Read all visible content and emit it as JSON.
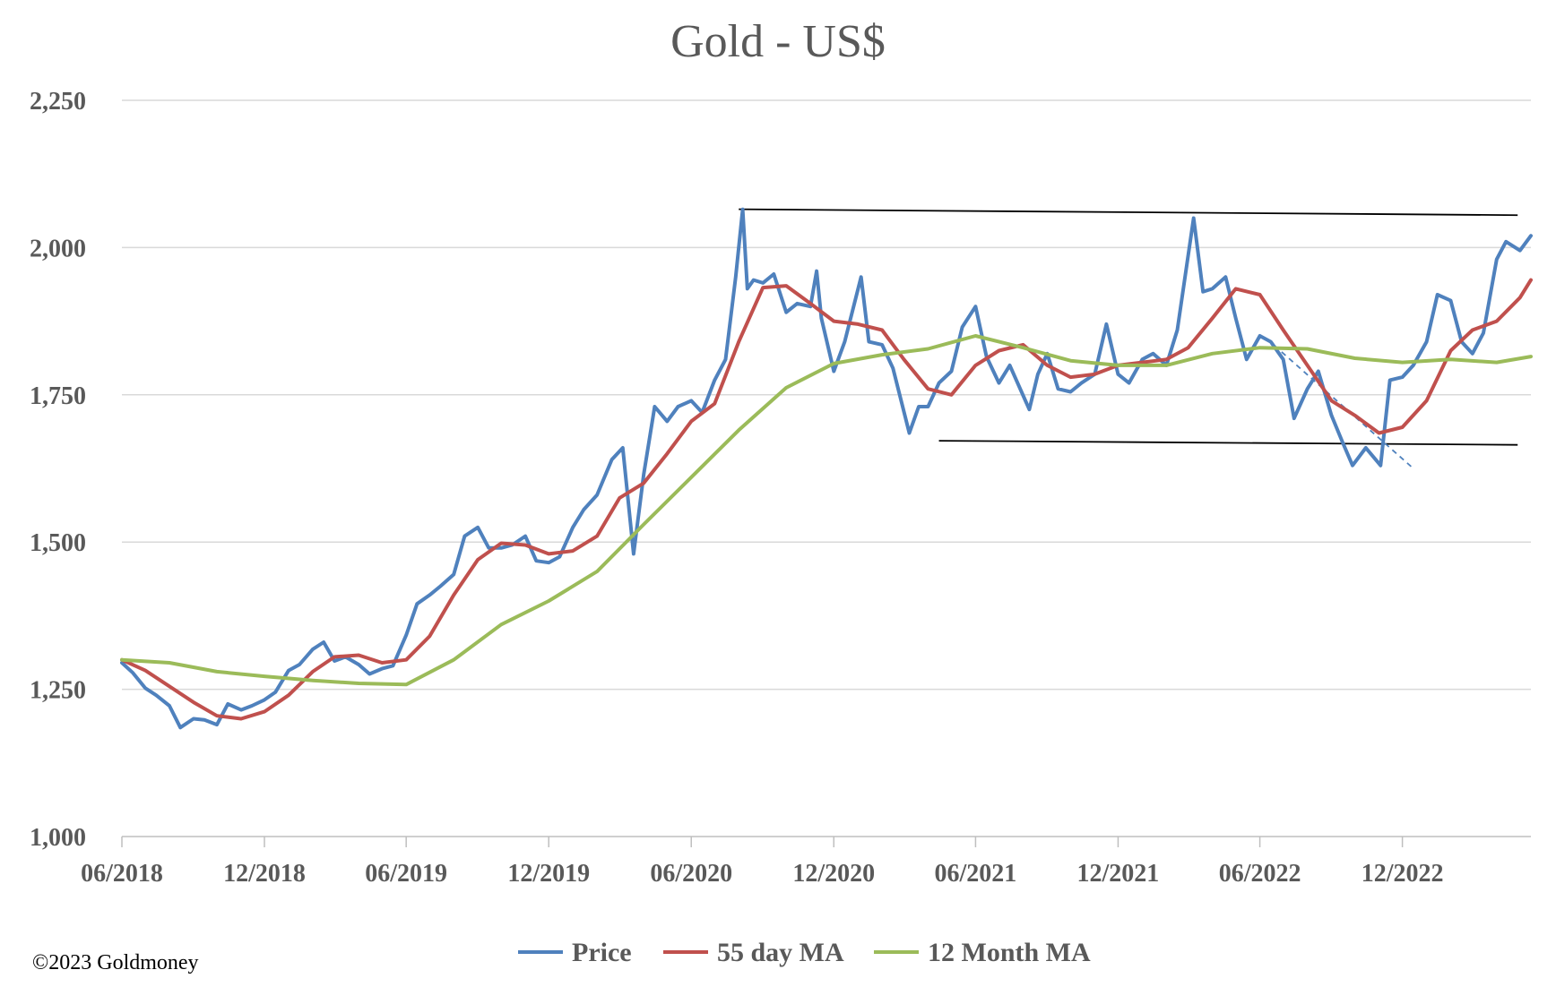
{
  "chart_data": {
    "type": "line",
    "title": "Gold - US$",
    "xlabel": "",
    "ylabel": "",
    "ylim": [
      1000,
      2250
    ],
    "yticks": [
      "1,000",
      "1,250",
      "1,500",
      "1,750",
      "2,000",
      "2,250"
    ],
    "ytick_values": [
      1000,
      1250,
      1500,
      1750,
      2000,
      2250
    ],
    "xlim": [
      "2018-06-01",
      "2023-05-15"
    ],
    "xticks": [
      "06/2018",
      "12/2018",
      "06/2019",
      "12/2019",
      "06/2020",
      "12/2020",
      "06/2021",
      "12/2021",
      "06/2022",
      "12/2022"
    ],
    "xtick_dates": [
      "2018-06-01",
      "2018-12-01",
      "2019-06-01",
      "2019-12-01",
      "2020-06-01",
      "2020-12-01",
      "2021-06-01",
      "2021-12-01",
      "2022-06-01",
      "2022-12-01"
    ],
    "grid": "horizontal",
    "legend_position": "bottom",
    "series": [
      {
        "name": "Price",
        "color": "#4F81BD",
        "x": [
          "2018-06-01",
          "2018-06-15",
          "2018-07-01",
          "2018-07-15",
          "2018-08-01",
          "2018-08-15",
          "2018-09-01",
          "2018-09-15",
          "2018-10-01",
          "2018-10-15",
          "2018-11-01",
          "2018-11-15",
          "2018-12-01",
          "2018-12-15",
          "2019-01-01",
          "2019-01-15",
          "2019-02-01",
          "2019-02-15",
          "2019-03-01",
          "2019-03-15",
          "2019-04-01",
          "2019-04-15",
          "2019-05-01",
          "2019-05-15",
          "2019-06-01",
          "2019-06-15",
          "2019-07-01",
          "2019-07-15",
          "2019-08-01",
          "2019-08-15",
          "2019-09-01",
          "2019-09-15",
          "2019-10-01",
          "2019-10-15",
          "2019-11-01",
          "2019-11-15",
          "2019-12-01",
          "2019-12-15",
          "2020-01-01",
          "2020-01-15",
          "2020-02-01",
          "2020-02-20",
          "2020-03-05",
          "2020-03-19",
          "2020-04-01",
          "2020-04-15",
          "2020-05-01",
          "2020-05-15",
          "2020-06-01",
          "2020-06-15",
          "2020-07-01",
          "2020-07-15",
          "2020-07-28",
          "2020-08-06",
          "2020-08-12",
          "2020-08-20",
          "2020-09-01",
          "2020-09-15",
          "2020-10-01",
          "2020-10-15",
          "2020-11-01",
          "2020-11-09",
          "2020-11-15",
          "2020-12-01",
          "2020-12-15",
          "2021-01-05",
          "2021-01-15",
          "2021-02-01",
          "2021-02-15",
          "2021-03-08",
          "2021-03-20",
          "2021-04-01",
          "2021-04-15",
          "2021-05-01",
          "2021-05-15",
          "2021-06-01",
          "2021-06-15",
          "2021-07-01",
          "2021-07-15",
          "2021-08-09",
          "2021-08-20",
          "2021-09-01",
          "2021-09-15",
          "2021-10-01",
          "2021-10-15",
          "2021-11-01",
          "2021-11-16",
          "2021-12-01",
          "2021-12-15",
          "2022-01-01",
          "2022-01-15",
          "2022-02-01",
          "2022-02-15",
          "2022-03-08",
          "2022-03-20",
          "2022-04-01",
          "2022-04-18",
          "2022-05-01",
          "2022-05-15",
          "2022-06-01",
          "2022-06-15",
          "2022-07-01",
          "2022-07-15",
          "2022-08-01",
          "2022-08-15",
          "2022-09-01",
          "2022-09-15",
          "2022-09-28",
          "2022-10-15",
          "2022-11-03",
          "2022-11-15",
          "2022-12-01",
          "2022-12-15",
          "2023-01-01",
          "2023-01-15",
          "2023-02-01",
          "2023-02-15",
          "2023-03-01",
          "2023-03-15",
          "2023-04-01",
          "2023-04-13",
          "2023-05-01",
          "2023-05-15"
        ],
        "y": [
          1295,
          1278,
          1252,
          1240,
          1222,
          1185,
          1200,
          1198,
          1190,
          1225,
          1215,
          1222,
          1232,
          1245,
          1282,
          1292,
          1318,
          1330,
          1298,
          1305,
          1292,
          1276,
          1285,
          1290,
          1342,
          1395,
          1410,
          1425,
          1445,
          1510,
          1525,
          1490,
          1490,
          1495,
          1510,
          1468,
          1465,
          1475,
          1525,
          1555,
          1580,
          1640,
          1660,
          1480,
          1615,
          1730,
          1705,
          1730,
          1740,
          1720,
          1775,
          1810,
          1950,
          2065,
          1930,
          1945,
          1940,
          1955,
          1890,
          1905,
          1900,
          1960,
          1880,
          1790,
          1840,
          1950,
          1840,
          1835,
          1795,
          1685,
          1730,
          1730,
          1770,
          1790,
          1865,
          1900,
          1815,
          1770,
          1800,
          1725,
          1785,
          1820,
          1760,
          1755,
          1770,
          1785,
          1870,
          1785,
          1770,
          1810,
          1820,
          1800,
          1860,
          2050,
          1925,
          1930,
          1950,
          1880,
          1810,
          1850,
          1840,
          1810,
          1710,
          1760,
          1790,
          1715,
          1670,
          1630,
          1660,
          1630,
          1775,
          1780,
          1800,
          1840,
          1920,
          1910,
          1840,
          1820,
          1855,
          1980,
          2010,
          1995,
          2020
        ]
      },
      {
        "name": "55 day MA",
        "color": "#C0504D",
        "x": [
          "2018-06-01",
          "2018-07-01",
          "2018-08-01",
          "2018-09-01",
          "2018-10-01",
          "2018-11-01",
          "2018-12-01",
          "2019-01-01",
          "2019-02-01",
          "2019-03-01",
          "2019-04-01",
          "2019-05-01",
          "2019-06-01",
          "2019-07-01",
          "2019-08-01",
          "2019-09-01",
          "2019-10-01",
          "2019-11-01",
          "2019-12-01",
          "2020-01-01",
          "2020-02-01",
          "2020-03-01",
          "2020-04-01",
          "2020-05-01",
          "2020-06-01",
          "2020-07-01",
          "2020-08-01",
          "2020-09-01",
          "2020-10-01",
          "2020-11-01",
          "2020-12-01",
          "2021-01-01",
          "2021-02-01",
          "2021-03-01",
          "2021-04-01",
          "2021-05-01",
          "2021-06-01",
          "2021-07-01",
          "2021-08-01",
          "2021-09-01",
          "2021-10-01",
          "2021-11-01",
          "2021-12-01",
          "2022-01-01",
          "2022-02-01",
          "2022-03-01",
          "2022-04-01",
          "2022-05-01",
          "2022-06-01",
          "2022-07-01",
          "2022-08-01",
          "2022-09-01",
          "2022-10-01",
          "2022-11-01",
          "2022-12-01",
          "2023-01-01",
          "2023-02-01",
          "2023-03-01",
          "2023-04-01",
          "2023-05-01",
          "2023-05-15"
        ],
        "y": [
          1300,
          1282,
          1255,
          1228,
          1205,
          1200,
          1212,
          1240,
          1280,
          1305,
          1308,
          1295,
          1300,
          1340,
          1410,
          1470,
          1498,
          1495,
          1480,
          1485,
          1510,
          1575,
          1600,
          1650,
          1705,
          1735,
          1840,
          1932,
          1935,
          1905,
          1875,
          1870,
          1860,
          1810,
          1760,
          1750,
          1800,
          1825,
          1835,
          1800,
          1780,
          1785,
          1800,
          1805,
          1810,
          1830,
          1880,
          1930,
          1920,
          1860,
          1800,
          1740,
          1715,
          1685,
          1695,
          1740,
          1825,
          1860,
          1875,
          1915,
          1945
        ]
      },
      {
        "name": "12 Month MA",
        "color": "#9BBB59",
        "x": [
          "2018-06-01",
          "2018-08-01",
          "2018-10-01",
          "2018-12-01",
          "2019-02-01",
          "2019-04-01",
          "2019-06-01",
          "2019-08-01",
          "2019-10-01",
          "2019-12-01",
          "2020-02-01",
          "2020-04-01",
          "2020-06-01",
          "2020-08-01",
          "2020-10-01",
          "2020-12-01",
          "2021-02-01",
          "2021-04-01",
          "2021-06-01",
          "2021-08-01",
          "2021-10-01",
          "2021-12-01",
          "2022-02-01",
          "2022-04-01",
          "2022-06-01",
          "2022-08-01",
          "2022-10-01",
          "2022-12-01",
          "2023-02-01",
          "2023-04-01",
          "2023-05-15"
        ],
        "y": [
          1300,
          1295,
          1280,
          1272,
          1265,
          1260,
          1258,
          1300,
          1360,
          1400,
          1450,
          1530,
          1610,
          1690,
          1762,
          1803,
          1818,
          1828,
          1850,
          1830,
          1808,
          1800,
          1800,
          1820,
          1830,
          1828,
          1812,
          1805,
          1810,
          1805,
          1815
        ]
      }
    ],
    "annotations": [
      {
        "type": "trendline",
        "style": "solid",
        "color": "#000000",
        "x": [
          "2020-08-01",
          "2023-04-28"
        ],
        "y": [
          2065,
          2055
        ]
      },
      {
        "type": "trendline",
        "style": "solid",
        "color": "#000000",
        "x": [
          "2021-04-15",
          "2023-04-28"
        ],
        "y": [
          1672,
          1665
        ]
      },
      {
        "type": "trendline",
        "style": "dashed",
        "color": "#4F81BD",
        "x": [
          "2022-06-10",
          "2022-12-15"
        ],
        "y": [
          1845,
          1625
        ]
      }
    ],
    "credit": "©2023 Goldmoney"
  }
}
